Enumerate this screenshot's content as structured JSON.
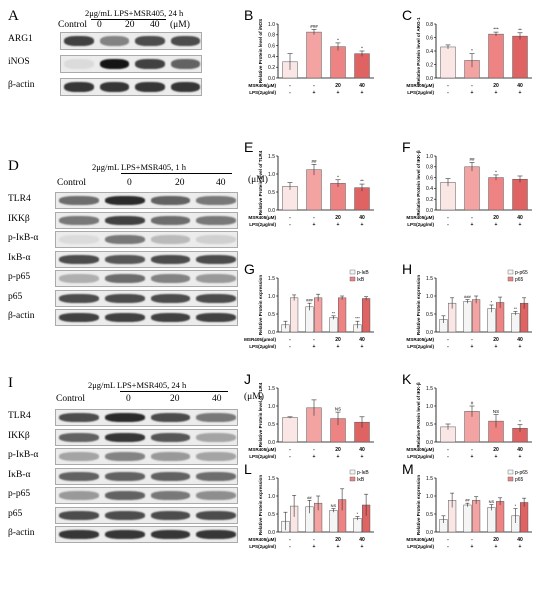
{
  "panels": {
    "A": {
      "letter": "A",
      "treatment": "2μg/mL LPS+MSR405, 24 h",
      "unit": "(μM)",
      "lanes": [
        "Control",
        "0",
        "20",
        "40"
      ],
      "proteins": [
        {
          "name": "ARG1",
          "intensity": [
            0.75,
            0.45,
            0.7,
            0.7
          ]
        },
        {
          "name": "iNOS",
          "intensity": [
            0.05,
            0.95,
            0.75,
            0.6
          ]
        },
        {
          "name": "β-actin",
          "intensity": [
            0.8,
            0.8,
            0.8,
            0.8
          ]
        }
      ]
    },
    "D": {
      "letter": "D",
      "treatment": "2μg/mL LPS+MSR405, 1 h",
      "unit": "(μM)",
      "lanes": [
        "Control",
        "0",
        "20",
        "40"
      ],
      "proteins": [
        {
          "name": "TLR4",
          "intensity": [
            0.55,
            0.85,
            0.6,
            0.5
          ]
        },
        {
          "name": "IKKβ",
          "intensity": [
            0.5,
            0.75,
            0.55,
            0.5
          ]
        },
        {
          "name": "p-IκB-α",
          "intensity": [
            0.05,
            0.5,
            0.2,
            0.1
          ]
        },
        {
          "name": "IκB-α",
          "intensity": [
            0.7,
            0.65,
            0.7,
            0.7
          ]
        },
        {
          "name": "p-p65",
          "intensity": [
            0.25,
            0.55,
            0.45,
            0.35
          ]
        },
        {
          "name": "p65",
          "intensity": [
            0.7,
            0.7,
            0.7,
            0.7
          ]
        },
        {
          "name": "β-actin",
          "intensity": [
            0.75,
            0.75,
            0.75,
            0.75
          ]
        }
      ]
    },
    "I": {
      "letter": "I",
      "treatment": "2μg/mL LPS+MSR405, 24 h",
      "unit": "(μM)",
      "lanes": [
        "Control",
        "0",
        "20",
        "40"
      ],
      "proteins": [
        {
          "name": "TLR4",
          "intensity": [
            0.7,
            0.85,
            0.7,
            0.5
          ]
        },
        {
          "name": "IKKβ",
          "intensity": [
            0.6,
            0.8,
            0.65,
            0.3
          ]
        },
        {
          "name": "p-IκB-α",
          "intensity": [
            0.3,
            0.45,
            0.35,
            0.3
          ]
        },
        {
          "name": "IκB-α",
          "intensity": [
            0.6,
            0.6,
            0.6,
            0.55
          ]
        },
        {
          "name": "p-p65",
          "intensity": [
            0.35,
            0.6,
            0.5,
            0.4
          ]
        },
        {
          "name": "p65",
          "intensity": [
            0.7,
            0.7,
            0.7,
            0.7
          ]
        },
        {
          "name": "β-actin",
          "intensity": [
            0.8,
            0.8,
            0.8,
            0.8
          ]
        }
      ]
    }
  },
  "colors": {
    "c0": "#fbe6e6",
    "c1": "#f4a3a3",
    "c2": "#ee8383",
    "c3": "#e06363",
    "white_bar": "#f5f5f5"
  },
  "chart_data": [
    {
      "id": "B",
      "type": "bar",
      "ylabel": "Relative Protein level of iNOS",
      "ylim": [
        0,
        1.0
      ],
      "yticks": [
        "0.0",
        "0.2",
        "0.4",
        "0.6",
        "0.8",
        "1.0"
      ],
      "values": [
        0.3,
        0.85,
        0.58,
        0.45
      ],
      "err": [
        0.15,
        0.05,
        0.07,
        0.05
      ],
      "sig": [
        "",
        "###",
        "*",
        "*"
      ],
      "row1_label": "MSR405(μM)",
      "row1": [
        "-",
        "-",
        "20",
        "40"
      ],
      "row2_label": "LPS(2μg/ml)",
      "row2": [
        "-",
        "+",
        "+",
        "+"
      ]
    },
    {
      "id": "C",
      "type": "bar",
      "ylabel": "Relative Protein level of ARG-1",
      "ylim": [
        0,
        0.8
      ],
      "yticks": [
        "0.0",
        "0.2",
        "0.4",
        "0.6",
        "0.8"
      ],
      "values": [
        0.46,
        0.26,
        0.65,
        0.62
      ],
      "err": [
        0.03,
        0.1,
        0.03,
        0.05
      ],
      "sig": [
        "",
        "*",
        "***",
        "**"
      ],
      "row1_label": "MSR405(μM)",
      "row1": [
        "-",
        "-",
        "20",
        "40"
      ],
      "row2_label": "LPS(2μg/ml)",
      "row2": [
        "-",
        "+",
        "+",
        "+"
      ]
    },
    {
      "id": "E",
      "type": "bar",
      "ylabel": "Relative Protein level of TLR4",
      "ylim": [
        0,
        1.5
      ],
      "yticks": [
        "0.0",
        "0.5",
        "1.0",
        "1.5"
      ],
      "values": [
        0.66,
        1.12,
        0.74,
        0.62
      ],
      "err": [
        0.1,
        0.15,
        0.1,
        0.1
      ],
      "sig": [
        "",
        "##",
        "*",
        "**"
      ],
      "row1_label": "MSR405(μM)",
      "row1": [
        "-",
        "-",
        "20",
        "40"
      ],
      "row2_label": "LPS(2μg/ml)",
      "row2": [
        "-",
        "+",
        "+",
        "+"
      ]
    },
    {
      "id": "F",
      "type": "bar",
      "ylabel": "Relative Protein level of IKK-β",
      "ylim": [
        0,
        1.0
      ],
      "yticks": [
        "0.0",
        "0.2",
        "0.4",
        "0.6",
        "0.8",
        "1.0"
      ],
      "values": [
        0.51,
        0.8,
        0.6,
        0.57
      ],
      "err": [
        0.07,
        0.08,
        0.05,
        0.06
      ],
      "sig": [
        "",
        "##",
        "*",
        ""
      ],
      "row1_label": "MSR405(μM)",
      "row1": [
        "-",
        "-",
        "20",
        "40"
      ],
      "row2_label": "LPS(2μg/ml)",
      "row2": [
        "-",
        "+",
        "+",
        "+"
      ]
    },
    {
      "id": "G",
      "type": "bar",
      "ylabel": "Relative Protein expression",
      "ylim": [
        0,
        1.5
      ],
      "yticks": [
        "0.0",
        "0.5",
        "1.0",
        "1.5"
      ],
      "series": [
        {
          "name": "p-IκB",
          "values": [
            0.2,
            0.7,
            0.4,
            0.2
          ],
          "err": [
            0.1,
            0.1,
            0.05,
            0.1
          ],
          "sig": [
            "",
            "###",
            "**",
            "***"
          ]
        },
        {
          "name": "IκB",
          "values": [
            0.95,
            0.95,
            0.95,
            0.93
          ],
          "err": [
            0.08,
            0.1,
            0.05,
            0.05
          ],
          "sig": [
            "",
            "",
            "",
            ""
          ]
        }
      ],
      "row1_label": "MSR405(μmol)",
      "row1": [
        "-",
        "-",
        "20",
        "40"
      ],
      "row2_label": "LPS(2μg/ml)",
      "row2": [
        "-",
        "+",
        "+",
        "+"
      ]
    },
    {
      "id": "H",
      "type": "bar",
      "ylabel": "Relative Protein expression",
      "ylim": [
        0,
        1.5
      ],
      "yticks": [
        "0.0",
        "0.5",
        "1.0",
        "1.5"
      ],
      "series": [
        {
          "name": "p-p65",
          "values": [
            0.35,
            0.85,
            0.65,
            0.52
          ],
          "err": [
            0.1,
            0.05,
            0.1,
            0.05
          ],
          "sig": [
            "",
            "###",
            "*",
            "**"
          ]
        },
        {
          "name": "p65",
          "values": [
            0.8,
            0.9,
            0.82,
            0.8
          ],
          "err": [
            0.15,
            0.1,
            0.15,
            0.15
          ],
          "sig": [
            "",
            "",
            "",
            ""
          ]
        }
      ],
      "row1_label": "MSR405(μM)",
      "row1": [
        "-",
        "-",
        "20",
        "40"
      ],
      "row2_label": "LPS(2μg/ml)",
      "row2": [
        "-",
        "+",
        "+",
        "+"
      ]
    },
    {
      "id": "J",
      "type": "bar",
      "ylabel": "Relative Protein level of TLR4",
      "ylim": [
        0,
        1.5
      ],
      "yticks": [
        "0.0",
        "0.5",
        "1.0",
        "1.5"
      ],
      "values": [
        0.68,
        0.95,
        0.65,
        0.55
      ],
      "err": [
        0.02,
        0.22,
        0.18,
        0.15
      ],
      "sig": [
        "",
        "",
        "NS",
        ""
      ],
      "row1_label": "MSR405(μM)",
      "row1": [
        "-",
        "-",
        "20",
        "40"
      ],
      "row2_label": "LPS(2μg/ml)",
      "row2": [
        "-",
        "+",
        "+",
        "+"
      ]
    },
    {
      "id": "K",
      "type": "bar",
      "ylabel": "Relative Protein level of IKK-β",
      "ylim": [
        0,
        1.5
      ],
      "yticks": [
        "0.0",
        "0.5",
        "1.0",
        "1.5"
      ],
      "values": [
        0.42,
        0.85,
        0.58,
        0.38
      ],
      "err": [
        0.08,
        0.15,
        0.18,
        0.1
      ],
      "sig": [
        "",
        "#",
        "NS",
        "*"
      ],
      "row1_label": "MSR405(μM)",
      "row1": [
        "-",
        "-",
        "20",
        "40"
      ],
      "row2_label": "LPS(2μg/ml)",
      "row2": [
        "-",
        "+",
        "+",
        "+"
      ]
    },
    {
      "id": "L",
      "type": "bar",
      "ylabel": "Relative Protein expression",
      "ylim": [
        0,
        1.5
      ],
      "yticks": [
        "0.0",
        "0.5",
        "1.0",
        "1.5"
      ],
      "series": [
        {
          "name": "p-IκB",
          "values": [
            0.3,
            0.7,
            0.6,
            0.38
          ],
          "err": [
            0.25,
            0.18,
            0.05,
            0.05
          ],
          "sig": [
            "",
            "##",
            "NS",
            "*"
          ]
        },
        {
          "name": "IκB",
          "values": [
            0.72,
            0.8,
            0.9,
            0.75
          ],
          "err": [
            0.3,
            0.2,
            0.3,
            0.3
          ],
          "sig": [
            "",
            "",
            "",
            ""
          ]
        }
      ],
      "row1_label": "MSR405(μM)",
      "row1": [
        "-",
        "-",
        "20",
        "40"
      ],
      "row2_label": "LPS(2μg/ml)",
      "row2": [
        "-",
        "+",
        "+",
        "+"
      ]
    },
    {
      "id": "M",
      "type": "bar",
      "ylabel": "Relative Protein expression",
      "ylim": [
        0,
        1.5
      ],
      "yticks": [
        "0.0",
        "0.5",
        "1.0",
        "1.5"
      ],
      "series": [
        {
          "name": "p-p65",
          "values": [
            0.35,
            0.75,
            0.68,
            0.45
          ],
          "err": [
            0.1,
            0.05,
            0.08,
            0.2
          ],
          "sig": [
            "",
            "##",
            "NS",
            "*"
          ]
        },
        {
          "name": "p65",
          "values": [
            0.88,
            0.88,
            0.85,
            0.82
          ],
          "err": [
            0.2,
            0.1,
            0.1,
            0.12
          ],
          "sig": [
            "",
            "",
            "",
            ""
          ]
        }
      ],
      "row1_label": "MSR405(μM)",
      "row1": [
        "-",
        "-",
        "20",
        "40"
      ],
      "row2_label": "LPS(2μg/ml)",
      "row2": [
        "-",
        "+",
        "+",
        "+"
      ]
    }
  ]
}
